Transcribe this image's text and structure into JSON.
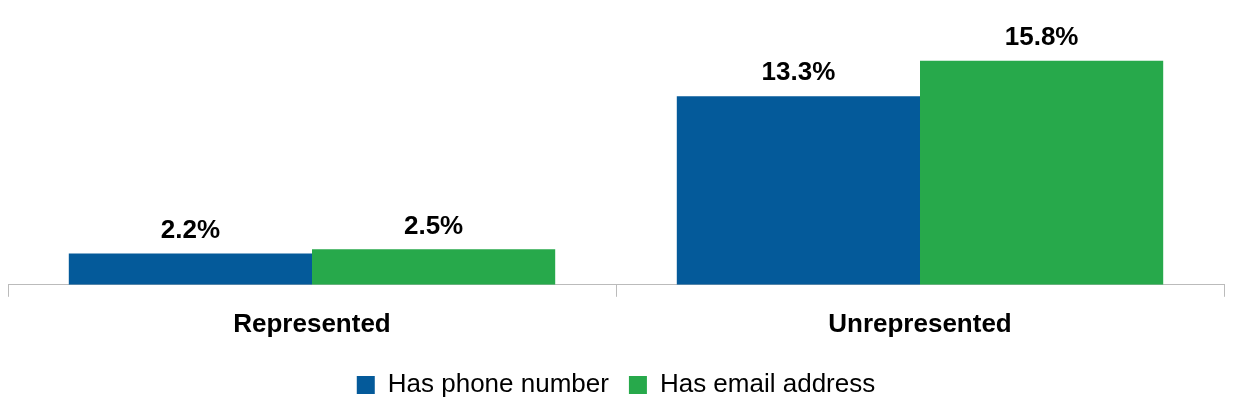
{
  "chart_data": {
    "type": "bar",
    "categories": [
      "Represented",
      "Unrepresented"
    ],
    "series": [
      {
        "name": "Has phone number",
        "color": "#045a9a",
        "values": [
          2.2,
          13.3
        ],
        "value_labels": [
          "2.2%",
          "13.3%"
        ]
      },
      {
        "name": "Has email address",
        "color": "#27a94b",
        "values": [
          2.5,
          15.8
        ],
        "value_labels": [
          "2.5%",
          "15.8%"
        ]
      }
    ],
    "legend": "bottom",
    "grid": false
  }
}
